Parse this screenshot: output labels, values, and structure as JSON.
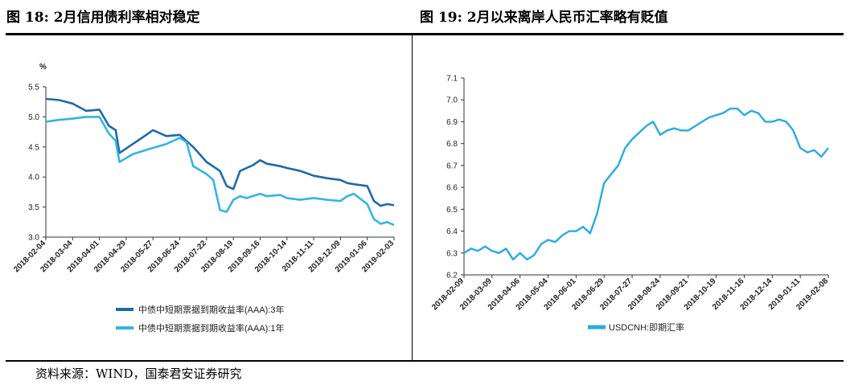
{
  "titles": {
    "left": "图 18: 2月信用债利率相对稳定",
    "right": "图 19: 2月以来离岸人民币汇率略有贬值"
  },
  "footer": {
    "source": "资料来源：WIND，国泰君安证券研究"
  },
  "chart_data": [
    {
      "type": "line",
      "title": "图 18: 2月信用债利率相对稳定",
      "ylabel": "%",
      "ylim": [
        3.0,
        5.5
      ],
      "yticks": [
        "3.0",
        "3.5",
        "4.0",
        "4.5",
        "5.0",
        "5.5"
      ],
      "xticks": [
        "2018-02-04",
        "2018-03-04",
        "2018-04-01",
        "2018-04-29",
        "2018-05-27",
        "2018-06-24",
        "2018-07-22",
        "2018-08-19",
        "2018-09-16",
        "2018-10-14",
        "2018-11-11",
        "2018-12-09",
        "2019-01-06",
        "2019-02-03"
      ],
      "grid": false,
      "legend_position": "bottom",
      "colors": {
        "series_3y": "#1f6aa5",
        "series_1y": "#33b5e5"
      },
      "series": [
        {
          "name": "中债中短期票据到期收益率(AAA):3年",
          "x": [
            "2018-02-04",
            "2018-02-18",
            "2018-03-04",
            "2018-03-18",
            "2018-04-01",
            "2018-04-11",
            "2018-04-18",
            "2018-04-22",
            "2018-05-06",
            "2018-05-20",
            "2018-05-27",
            "2018-06-10",
            "2018-06-24",
            "2018-07-01",
            "2018-07-08",
            "2018-07-22",
            "2018-08-05",
            "2018-08-12",
            "2018-08-19",
            "2018-08-26",
            "2018-09-02",
            "2018-09-09",
            "2018-09-16",
            "2018-09-23",
            "2018-10-07",
            "2018-10-14",
            "2018-10-28",
            "2018-11-11",
            "2018-11-25",
            "2018-12-09",
            "2018-12-16",
            "2018-12-23",
            "2019-01-06",
            "2019-01-13",
            "2019-01-20",
            "2019-01-27",
            "2019-02-03"
          ],
          "y": [
            5.3,
            5.28,
            5.22,
            5.1,
            5.12,
            4.85,
            4.78,
            4.4,
            4.55,
            4.7,
            4.78,
            4.68,
            4.7,
            4.6,
            4.5,
            4.25,
            4.1,
            3.85,
            3.8,
            4.1,
            4.15,
            4.2,
            4.28,
            4.22,
            4.18,
            4.15,
            4.1,
            4.02,
            3.98,
            3.95,
            3.9,
            3.88,
            3.85,
            3.6,
            3.52,
            3.55,
            3.53
          ]
        },
        {
          "name": "中债中短期票据到期收益率(AAA):1年",
          "x": [
            "2018-02-04",
            "2018-02-18",
            "2018-03-04",
            "2018-03-18",
            "2018-04-01",
            "2018-04-11",
            "2018-04-18",
            "2018-04-22",
            "2018-05-06",
            "2018-05-20",
            "2018-06-10",
            "2018-06-24",
            "2018-07-01",
            "2018-07-08",
            "2018-07-22",
            "2018-07-29",
            "2018-08-05",
            "2018-08-12",
            "2018-08-19",
            "2018-08-26",
            "2018-09-02",
            "2018-09-16",
            "2018-09-23",
            "2018-10-07",
            "2018-10-14",
            "2018-10-28",
            "2018-11-11",
            "2018-11-25",
            "2018-12-09",
            "2018-12-16",
            "2018-12-23",
            "2019-01-06",
            "2019-01-13",
            "2019-01-20",
            "2019-01-27",
            "2019-02-03"
          ],
          "y": [
            4.92,
            4.95,
            4.97,
            5.0,
            5.0,
            4.72,
            4.6,
            4.25,
            4.38,
            4.45,
            4.55,
            4.65,
            4.58,
            4.18,
            4.05,
            3.95,
            3.45,
            3.42,
            3.62,
            3.68,
            3.65,
            3.72,
            3.68,
            3.7,
            3.65,
            3.62,
            3.65,
            3.62,
            3.6,
            3.68,
            3.72,
            3.55,
            3.3,
            3.22,
            3.25,
            3.2
          ]
        }
      ]
    },
    {
      "type": "line",
      "title": "图 19: 2月以来离岸人民币汇率略有贬值",
      "ylim": [
        6.2,
        7.1
      ],
      "yticks": [
        "6.2",
        "6.3",
        "6.4",
        "6.5",
        "6.6",
        "6.7",
        "6.8",
        "6.9",
        "7.0",
        "7.1"
      ],
      "xticks": [
        "2018-02-09",
        "2018-03-09",
        "2018-04-06",
        "2018-05-04",
        "2018-06-01",
        "2018-06-29",
        "2018-07-27",
        "2018-08-24",
        "2018-09-21",
        "2018-10-19",
        "2018-11-16",
        "2018-12-14",
        "2019-01-11",
        "2019-02-08"
      ],
      "grid": false,
      "legend_position": "bottom",
      "colors": {
        "series": "#29abe2"
      },
      "series": [
        {
          "name": "USDCNH:即期汇率",
          "x": [
            "2018-02-09",
            "2018-02-16",
            "2018-02-23",
            "2018-03-02",
            "2018-03-09",
            "2018-03-16",
            "2018-03-23",
            "2018-03-30",
            "2018-04-06",
            "2018-04-13",
            "2018-04-20",
            "2018-04-27",
            "2018-05-04",
            "2018-05-11",
            "2018-05-18",
            "2018-05-25",
            "2018-06-01",
            "2018-06-08",
            "2018-06-15",
            "2018-06-22",
            "2018-06-29",
            "2018-07-06",
            "2018-07-13",
            "2018-07-20",
            "2018-07-27",
            "2018-08-03",
            "2018-08-10",
            "2018-08-17",
            "2018-08-24",
            "2018-08-31",
            "2018-09-07",
            "2018-09-14",
            "2018-09-21",
            "2018-09-28",
            "2018-10-05",
            "2018-10-12",
            "2018-10-19",
            "2018-10-26",
            "2018-11-02",
            "2018-11-09",
            "2018-11-16",
            "2018-11-23",
            "2018-11-30",
            "2018-12-07",
            "2018-12-14",
            "2018-12-21",
            "2018-12-28",
            "2019-01-04",
            "2019-01-11",
            "2019-01-18",
            "2019-01-25",
            "2019-02-01",
            "2019-02-08"
          ],
          "y": [
            6.3,
            6.32,
            6.31,
            6.33,
            6.31,
            6.3,
            6.32,
            6.27,
            6.3,
            6.27,
            6.29,
            6.34,
            6.36,
            6.35,
            6.38,
            6.4,
            6.4,
            6.42,
            6.39,
            6.48,
            6.62,
            6.66,
            6.7,
            6.78,
            6.82,
            6.85,
            6.88,
            6.9,
            6.84,
            6.86,
            6.87,
            6.86,
            6.86,
            6.88,
            6.9,
            6.92,
            6.93,
            6.94,
            6.96,
            6.96,
            6.93,
            6.95,
            6.94,
            6.9,
            6.9,
            6.91,
            6.9,
            6.86,
            6.78,
            6.76,
            6.77,
            6.74,
            6.78
          ]
        }
      ]
    }
  ]
}
